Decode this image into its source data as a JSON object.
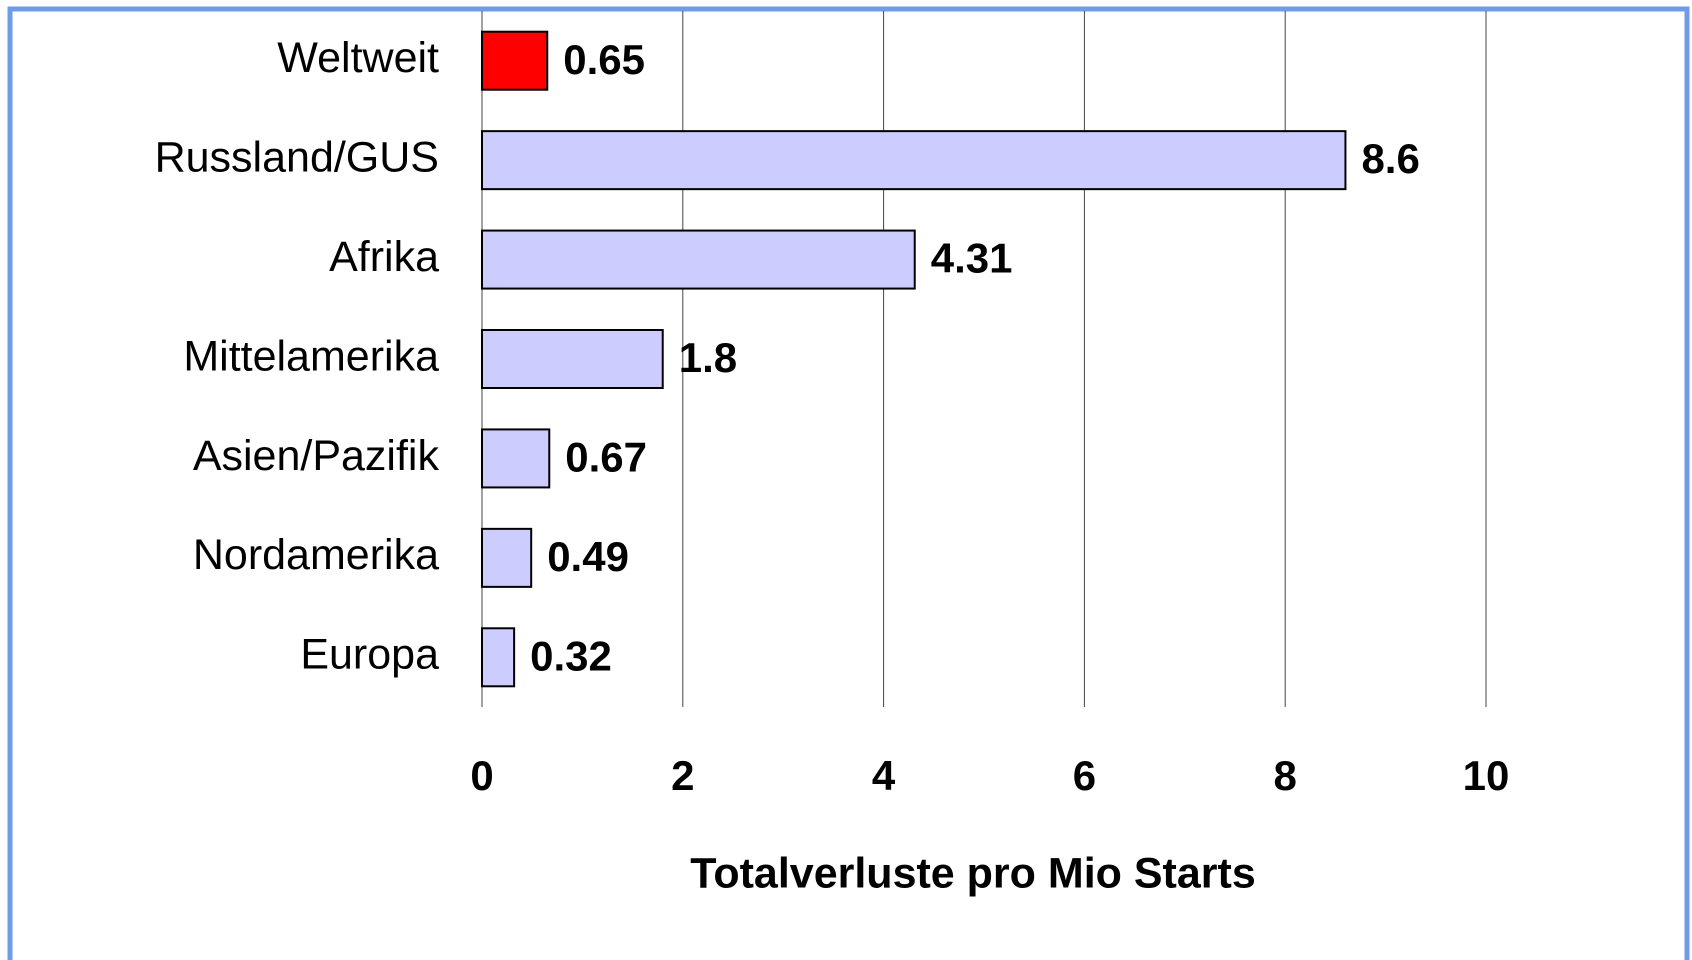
{
  "chart_data": {
    "type": "bar",
    "orientation": "horizontal",
    "categories": [
      "Weltweit",
      "Russland/GUS",
      "Afrika",
      "Mittelamerika",
      "Asien/Pazifik",
      "Nordamerika",
      "Europa"
    ],
    "values": [
      0.65,
      8.6,
      4.31,
      1.8,
      0.67,
      0.49,
      0.32
    ],
    "colors": [
      "#ff0000",
      "#ccccff",
      "#ccccff",
      "#ccccff",
      "#ccccff",
      "#ccccff",
      "#ccccff"
    ],
    "xlabel": "Totalverluste pro Mio Starts",
    "xlim": [
      0,
      12
    ],
    "xticks": [
      0,
      2,
      4,
      6,
      8,
      10
    ],
    "grid": true
  }
}
